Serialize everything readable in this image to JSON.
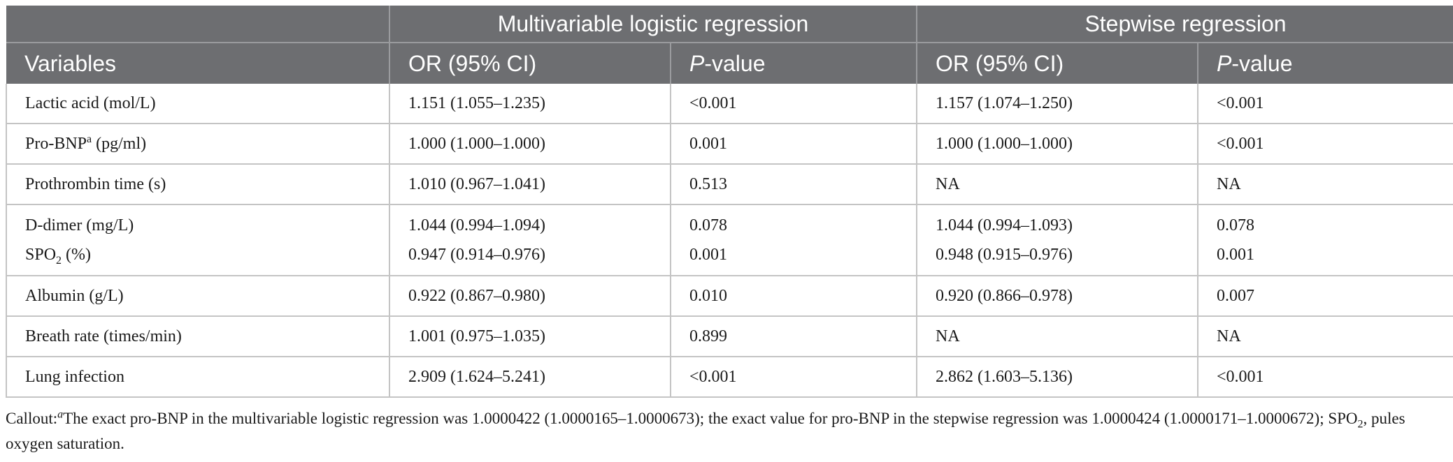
{
  "header": {
    "group1": "Multivariable logistic regression",
    "group2": "Stepwise regression",
    "variables": "Variables",
    "or_ci": "OR (95% CI)",
    "p_italic": "P",
    "p_suffix": "-value"
  },
  "rows": [
    {
      "var": "Lactic acid (mol/L)",
      "m_or": "1.151 (1.055–1.235)",
      "m_p": "<0.001",
      "s_or": "1.157 (1.074–1.250)",
      "s_p": "<0.001"
    },
    {
      "var_main": "Pro-BNP",
      "var_sup": "a",
      "var_tail": " (pg/ml)",
      "m_or": "1.000 (1.000–1.000)",
      "m_p": "0.001",
      "s_or": "1.000 (1.000–1.000)",
      "s_p": "<0.001"
    },
    {
      "var": "Prothrombin time (s)",
      "m_or": "1.010 (0.967–1.041)",
      "m_p": "0.513",
      "s_or": "NA",
      "s_p": "NA"
    },
    {
      "var": "D-dimer (mg/L)",
      "m_or": "1.044 (0.994–1.094)",
      "m_p": "0.078",
      "s_or": "1.044 (0.994–1.093)",
      "s_p": "0.078"
    },
    {
      "var_main": "SPO",
      "var_sub": "2",
      "var_tail": " (%)",
      "m_or": "0.947 (0.914–0.976)",
      "m_p": "0.001",
      "s_or": "0.948 (0.915–0.976)",
      "s_p": "0.001"
    },
    {
      "var": "Albumin (g/L)",
      "m_or": "0.922 (0.867–0.980)",
      "m_p": "0.010",
      "s_or": "0.920 (0.866–0.978)",
      "s_p": "0.007"
    },
    {
      "var": "Breath rate (times/min)",
      "m_or": "1.001 (0.975–1.035)",
      "m_p": "0.899",
      "s_or": "NA",
      "s_p": "NA"
    },
    {
      "var": "Lung infection",
      "m_or": "2.909 (1.624–5.241)",
      "m_p": "<0.001",
      "s_or": "2.862 (1.603–5.136)",
      "s_p": "<0.001"
    }
  ],
  "footnote": {
    "prefix": "Callout:",
    "sup": "a",
    "text1": "The exact pro-BNP in the multivariable logistic regression was 1.0000422 (1.0000165–1.0000673); the exact value for pro-BNP in the stepwise regression was 1.0000424 (1.0000171–1.0000672); SPO",
    "sub": "2",
    "text2": ", pules oxygen saturation."
  }
}
